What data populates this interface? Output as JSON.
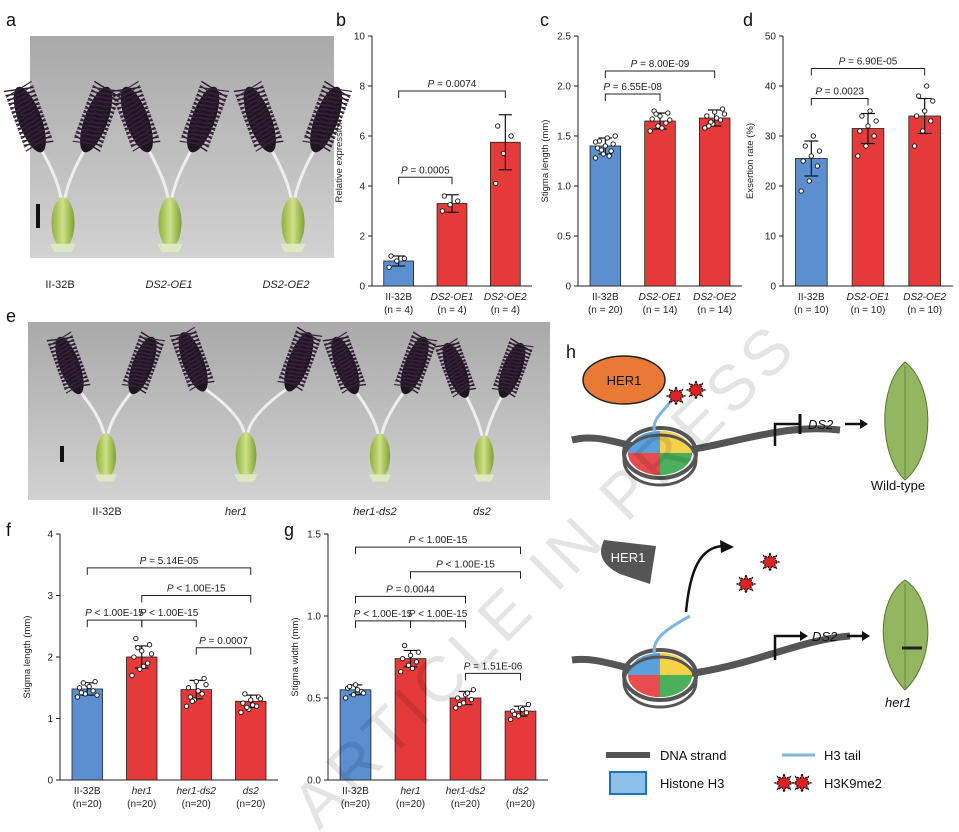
{
  "panel_labels": {
    "a": "a",
    "b": "b",
    "c": "c",
    "d": "d",
    "e": "e",
    "f": "f",
    "g": "g",
    "h": "h"
  },
  "photo_a": {
    "labels": [
      "II-32B",
      "DS2-OE1",
      "DS2-OE2"
    ]
  },
  "photo_e": {
    "labels": [
      "II-32B",
      "her1",
      "her1-ds2",
      "ds2"
    ]
  },
  "colors": {
    "blue": "#5b8fd0",
    "red": "#e43a3a",
    "dark": "#4a4a4a",
    "h3": "#7fb6e0",
    "leaf": "#93b760",
    "mark": "#e02020"
  },
  "watermark": "ARTICLE IN PRESS",
  "chart_data": [
    {
      "panel": "b",
      "type": "bar",
      "title": "",
      "xlabel": "",
      "ylabel": "Relative expression",
      "categories": [
        "II-32B",
        "DS2-OE1",
        "DS2-OE2"
      ],
      "counts": [
        "(n = 4)",
        "(n = 4)",
        "(n = 4)"
      ],
      "values": [
        1.0,
        3.3,
        5.75
      ],
      "errors": [
        0.2,
        0.35,
        1.1
      ],
      "ylim": [
        0,
        10
      ],
      "yticks": [
        "0",
        "2",
        "4",
        "6",
        "8",
        "10"
      ],
      "bar_colors": [
        "blue",
        "red",
        "red"
      ],
      "points": [
        [
          0.75,
          1.0,
          1.1,
          1.2
        ],
        [
          3.0,
          3.25,
          3.4,
          3.6
        ],
        [
          4.1,
          5.3,
          6.0,
          6.4
        ]
      ],
      "comparisons": [
        {
          "from": 0,
          "to": 1,
          "label": "P = 0.0005",
          "level": 4.35
        },
        {
          "from": 0,
          "to": 2,
          "label": "P = 0.0074",
          "level": 7.8
        }
      ]
    },
    {
      "panel": "c",
      "type": "bar",
      "title": "",
      "xlabel": "",
      "ylabel": "Stigma length (mm)",
      "categories": [
        "II-32B",
        "DS2-OE1",
        "DS2-OE2"
      ],
      "counts": [
        "(n = 20)",
        "(n = 14)",
        "(n = 14)"
      ],
      "values": [
        1.4,
        1.65,
        1.68
      ],
      "errors": [
        0.08,
        0.08,
        0.08
      ],
      "ylim": [
        0,
        2.5
      ],
      "yticks": [
        "0",
        "0.5",
        "1.0",
        "1.5",
        "2.0",
        "2.5"
      ],
      "bar_colors": [
        "blue",
        "red",
        "red"
      ],
      "points": [
        [
          1.28,
          1.32,
          1.35,
          1.38,
          1.4,
          1.42,
          1.45,
          1.48,
          1.5,
          1.36,
          1.3,
          1.44
        ],
        [
          1.55,
          1.6,
          1.63,
          1.67,
          1.7,
          1.73,
          1.75,
          1.58,
          1.66,
          1.72
        ],
        [
          1.58,
          1.62,
          1.66,
          1.7,
          1.74,
          1.77,
          1.6,
          1.68,
          1.72,
          1.64
        ]
      ],
      "comparisons": [
        {
          "from": 0,
          "to": 1,
          "label": "P = 6.55E-08",
          "level": 1.92
        },
        {
          "from": 0,
          "to": 2,
          "label": "P = 8.00E-09",
          "level": 2.15
        }
      ]
    },
    {
      "panel": "d",
      "type": "bar",
      "title": "",
      "xlabel": "",
      "ylabel": "Exsertion rate (%)",
      "categories": [
        "II-32B",
        "DS2-OE1",
        "DS2-OE2"
      ],
      "counts": [
        "(n = 10)",
        "(n = 10)",
        "(n = 10)"
      ],
      "values": [
        25.5,
        31.5,
        34.0
      ],
      "errors": [
        3.5,
        3.0,
        3.5
      ],
      "ylim": [
        0,
        50
      ],
      "yticks": [
        "0",
        "10",
        "20",
        "30",
        "40",
        "50"
      ],
      "bar_colors": [
        "blue",
        "red",
        "red"
      ],
      "points": [
        [
          19,
          21,
          24,
          25,
          26,
          27,
          28,
          30
        ],
        [
          26,
          28,
          30,
          31,
          32,
          33,
          34,
          35
        ],
        [
          28,
          31,
          33,
          34,
          35,
          37,
          38,
          40
        ]
      ],
      "comparisons": [
        {
          "from": 0,
          "to": 1,
          "label": "P = 0.0023",
          "level": 37.5
        },
        {
          "from": 0,
          "to": 2,
          "label": "P = 6.90E-05",
          "level": 43.5
        }
      ]
    },
    {
      "panel": "f",
      "type": "bar",
      "title": "",
      "xlabel": "",
      "ylabel": "Stigma length (mm)",
      "categories": [
        "II-32B",
        "her1",
        "her1-ds2",
        "ds2"
      ],
      "counts": [
        "(n=20)",
        "(n=20)",
        "(n=20)",
        "(n=20)"
      ],
      "values": [
        1.48,
        2.0,
        1.47,
        1.28
      ],
      "errors": [
        0.1,
        0.18,
        0.15,
        0.1
      ],
      "ylim": [
        0,
        4
      ],
      "yticks": [
        "0",
        "1",
        "2",
        "3",
        "4"
      ],
      "bar_colors": [
        "blue",
        "red",
        "red",
        "red"
      ],
      "points": [
        [
          1.35,
          1.4,
          1.45,
          1.5,
          1.55,
          1.6,
          1.42,
          1.52,
          1.38,
          1.58
        ],
        [
          1.7,
          1.8,
          1.9,
          2.0,
          2.1,
          2.2,
          2.3,
          1.85,
          2.05,
          2.15
        ],
        [
          1.2,
          1.3,
          1.4,
          1.5,
          1.6,
          1.65,
          1.35,
          1.45,
          1.55,
          1.28
        ],
        [
          1.1,
          1.15,
          1.2,
          1.25,
          1.3,
          1.35,
          1.4,
          1.22,
          1.32,
          1.18
        ]
      ],
      "comparisons": [
        {
          "from": 0,
          "to": 1,
          "label": "P < 1.00E-15",
          "level": 2.6
        },
        {
          "from": 1,
          "to": 2,
          "label": "P < 1.00E-15",
          "level": 2.6
        },
        {
          "from": 1,
          "to": 3,
          "label": "P < 1.00E-15",
          "level": 3.0
        },
        {
          "from": 2,
          "to": 3,
          "label": "P = 0.0007",
          "level": 2.15
        },
        {
          "from": 0,
          "to": 3,
          "label": "P = 5.14E-05",
          "level": 3.45
        }
      ]
    },
    {
      "panel": "g",
      "type": "bar",
      "title": "",
      "xlabel": "",
      "ylabel": "Stigma width (mm)",
      "categories": [
        "II-32B",
        "her1",
        "her1-ds2",
        "ds2"
      ],
      "counts": [
        "(n=20)",
        "(n=20)",
        "(n=20)",
        "(n=20)"
      ],
      "values": [
        0.55,
        0.74,
        0.5,
        0.42
      ],
      "errors": [
        0.03,
        0.05,
        0.04,
        0.03
      ],
      "ylim": [
        0,
        1.5
      ],
      "yticks": [
        "0.0",
        "0.5",
        "1.0",
        "1.5"
      ],
      "bar_colors": [
        "blue",
        "red",
        "red",
        "red"
      ],
      "points": [
        [
          0.5,
          0.52,
          0.54,
          0.56,
          0.58,
          0.53,
          0.57,
          0.55
        ],
        [
          0.66,
          0.7,
          0.72,
          0.74,
          0.76,
          0.78,
          0.82,
          0.68
        ],
        [
          0.44,
          0.47,
          0.49,
          0.5,
          0.52,
          0.55,
          0.46,
          0.53
        ],
        [
          0.37,
          0.39,
          0.41,
          0.42,
          0.44,
          0.46,
          0.4,
          0.43
        ]
      ],
      "comparisons": [
        {
          "from": 0,
          "to": 1,
          "label": "P < 1.00E-15",
          "level": 0.97
        },
        {
          "from": 1,
          "to": 2,
          "label": "P < 1.00E-15",
          "level": 0.97
        },
        {
          "from": 0,
          "to": 2,
          "label": "P = 0.0044",
          "level": 1.12
        },
        {
          "from": 2,
          "to": 3,
          "label": "P = 1.51E-06",
          "level": 0.65
        },
        {
          "from": 1,
          "to": 3,
          "label": "P < 1.00E-15",
          "level": 1.27
        },
        {
          "from": 0,
          "to": 3,
          "label": "P < 1.00E-15",
          "level": 1.42
        }
      ]
    }
  ],
  "diagram": {
    "her1_label": "HER1",
    "ds2_label": "DS2",
    "wildtype": "Wild-type",
    "her1_mutant": "her1",
    "legend": {
      "dna": "DNA strand",
      "h3tail": "H3 tail",
      "histone": "Histone H3",
      "mark": "H3K9me2"
    }
  }
}
